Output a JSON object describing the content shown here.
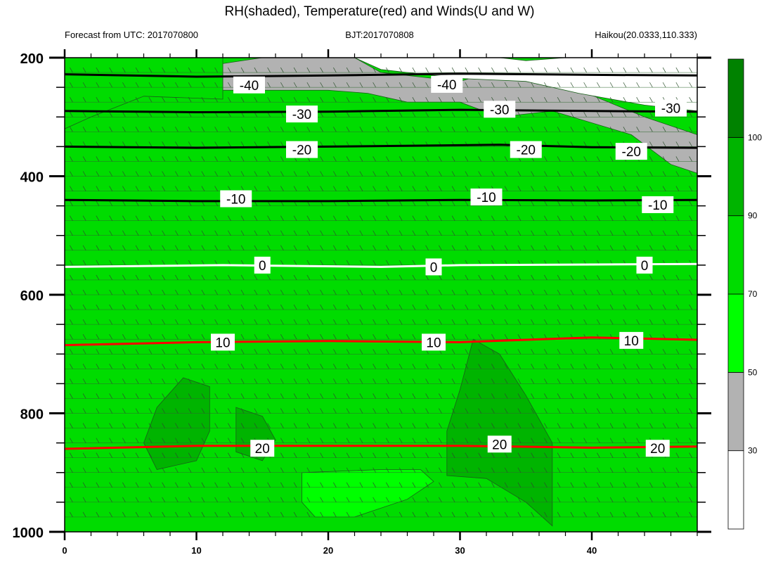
{
  "chart_data": {
    "type": "contour",
    "title": "RH(shaded), Temperature(red) and Winds(U and W)",
    "subtitle_left": "Forecast from UTC: 2017070800",
    "subtitle_center": "BJT:2017070808",
    "subtitle_right": "Haikou(20.0333,110.333)",
    "xlim": [
      0,
      48
    ],
    "x_ticks": [
      0,
      10,
      20,
      30,
      40
    ],
    "ylim": [
      200,
      1000
    ],
    "y_ticks": [
      200,
      400,
      600,
      800,
      1000
    ],
    "colorbar": {
      "levels": [
        30,
        50,
        70,
        90,
        100
      ],
      "colors": [
        "#ffffff",
        "#b2b2b2",
        "#00ff00",
        "#00dc00",
        "#00b400",
        "#008200"
      ]
    },
    "temperature_isotherms": [
      {
        "label": "-40",
        "color": "#000000",
        "points": [
          [
            0,
            228
          ],
          [
            10,
            232
          ],
          [
            20,
            230
          ],
          [
            30,
            227
          ],
          [
            40,
            229
          ],
          [
            48,
            230
          ]
        ],
        "label_at": [
          [
            14,
            246
          ],
          [
            29,
            245
          ]
        ]
      },
      {
        "label": "-30",
        "color": "#000000",
        "points": [
          [
            0,
            290
          ],
          [
            10,
            292
          ],
          [
            20,
            291
          ],
          [
            30,
            288
          ],
          [
            40,
            290
          ],
          [
            48,
            291
          ]
        ],
        "label_at": [
          [
            18,
            295
          ],
          [
            33,
            287
          ],
          [
            46,
            285
          ]
        ]
      },
      {
        "label": "-20",
        "color": "#000000",
        "points": [
          [
            0,
            350
          ],
          [
            10,
            352
          ],
          [
            20,
            350
          ],
          [
            33,
            347
          ],
          [
            40,
            351
          ],
          [
            48,
            352
          ]
        ],
        "label_at": [
          [
            18,
            355
          ],
          [
            35,
            355
          ],
          [
            43,
            358
          ]
        ]
      },
      {
        "label": "-10",
        "color": "#000000",
        "points": [
          [
            0,
            440
          ],
          [
            10,
            442
          ],
          [
            20,
            442
          ],
          [
            30,
            440
          ],
          [
            40,
            441
          ],
          [
            48,
            440
          ]
        ],
        "label_at": [
          [
            13,
            438
          ],
          [
            32,
            435
          ],
          [
            45,
            448
          ]
        ]
      },
      {
        "label": "0",
        "color": "#ffffff",
        "points": [
          [
            0,
            553
          ],
          [
            12,
            550
          ],
          [
            24,
            553
          ],
          [
            30,
            550
          ],
          [
            40,
            549
          ],
          [
            48,
            548
          ]
        ],
        "label_at": [
          [
            15,
            550
          ],
          [
            28,
            553
          ],
          [
            44,
            550
          ]
        ]
      },
      {
        "label": "10",
        "color": "#ff0000",
        "points": [
          [
            0,
            685
          ],
          [
            10,
            680
          ],
          [
            20,
            678
          ],
          [
            30,
            680
          ],
          [
            40,
            672
          ],
          [
            48,
            676
          ]
        ],
        "label_at": [
          [
            12,
            680
          ],
          [
            28,
            680
          ],
          [
            43,
            677
          ]
        ]
      },
      {
        "label": "20",
        "color": "#ff0000",
        "points": [
          [
            0,
            860
          ],
          [
            10,
            855
          ],
          [
            20,
            855
          ],
          [
            30,
            855
          ],
          [
            40,
            858
          ],
          [
            48,
            856
          ]
        ],
        "label_at": [
          [
            15,
            859
          ],
          [
            33,
            852
          ],
          [
            45,
            859
          ]
        ]
      }
    ],
    "rh_regions": [
      {
        "name": "RH 30-50 (gray) top center",
        "level": 40,
        "points": [
          [
            12,
            210
          ],
          [
            15,
            200
          ],
          [
            22,
            200
          ],
          [
            24,
            225
          ],
          [
            30,
            240
          ],
          [
            33,
            220
          ],
          [
            38,
            245
          ],
          [
            44,
            300
          ],
          [
            48,
            330
          ],
          [
            48,
            395
          ],
          [
            46,
            380
          ],
          [
            43,
            330
          ],
          [
            37,
            290
          ],
          [
            33,
            300
          ],
          [
            30,
            275
          ],
          [
            26,
            275
          ],
          [
            23,
            260
          ],
          [
            20,
            255
          ],
          [
            12,
            255
          ]
        ]
      },
      {
        "name": "RH < 30 (white) top right",
        "level": 20,
        "points": [
          [
            22,
            200
          ],
          [
            33,
            200
          ],
          [
            35,
            205
          ],
          [
            38,
            200
          ],
          [
            48,
            200
          ],
          [
            48,
            290
          ],
          [
            44,
            280
          ],
          [
            39,
            260
          ],
          [
            35,
            240
          ],
          [
            30,
            235
          ],
          [
            24,
            220
          ]
        ]
      },
      {
        "name": "RH 70-90 band upper left",
        "level": 80,
        "points": [
          [
            0,
            200
          ],
          [
            12,
            200
          ],
          [
            12,
            270
          ],
          [
            6,
            265
          ],
          [
            2,
            300
          ],
          [
            0,
            320
          ]
        ]
      },
      {
        "name": "RH 90-100 patch mid left",
        "level": 95,
        "points": [
          [
            9,
            740
          ],
          [
            11,
            755
          ],
          [
            11,
            830
          ],
          [
            10,
            880
          ],
          [
            7,
            895
          ],
          [
            6,
            850
          ],
          [
            7,
            790
          ]
        ]
      },
      {
        "name": "RH 90-100 patch mid center",
        "level": 95,
        "points": [
          [
            13,
            790
          ],
          [
            15,
            805
          ],
          [
            16,
            845
          ],
          [
            15,
            880
          ],
          [
            13,
            865
          ],
          [
            13,
            820
          ]
        ]
      },
      {
        "name": "RH 90-100 patch right",
        "level": 95,
        "points": [
          [
            31,
            675
          ],
          [
            33,
            700
          ],
          [
            35,
            770
          ],
          [
            37,
            850
          ],
          [
            37,
            940
          ],
          [
            37,
            990
          ],
          [
            35,
            950
          ],
          [
            32,
            910
          ],
          [
            29,
            905
          ],
          [
            29,
            830
          ],
          [
            30,
            760
          ]
        ]
      },
      {
        "name": "RH 50-70 patch lower center",
        "level": 60,
        "points": [
          [
            18,
            900
          ],
          [
            24,
            895
          ],
          [
            27,
            895
          ],
          [
            28,
            915
          ],
          [
            26,
            945
          ],
          [
            22,
            975
          ],
          [
            19,
            975
          ],
          [
            18,
            950
          ]
        ]
      }
    ]
  }
}
